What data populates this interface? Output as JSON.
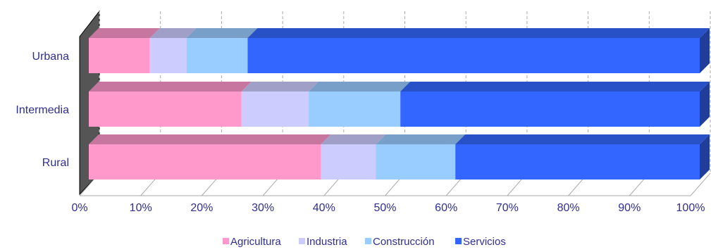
{
  "chart_data": {
    "type": "bar",
    "orientation": "horizontal",
    "stacked": "percent",
    "three_d": true,
    "categories": [
      "Urbana",
      "Intermedia",
      "Rural"
    ],
    "series": [
      {
        "name": "Agricultura",
        "values": [
          10,
          25,
          38
        ]
      },
      {
        "name": "Industria",
        "values": [
          6,
          11,
          9
        ]
      },
      {
        "name": "Construcción",
        "values": [
          10,
          15,
          13
        ]
      },
      {
        "name": "Servicios",
        "values": [
          74,
          49,
          40
        ]
      }
    ],
    "colors": [
      "#ff99cc",
      "#ccccff",
      "#99ccff",
      "#3366ff"
    ],
    "xlim": [
      0,
      100
    ],
    "xticks": [
      "0%",
      "10%",
      "20%",
      "30%",
      "40%",
      "50%",
      "60%",
      "70%",
      "80%",
      "90%",
      "100%"
    ],
    "grid": true,
    "legend_position": "bottom",
    "title": "",
    "xlabel": "",
    "ylabel": ""
  }
}
